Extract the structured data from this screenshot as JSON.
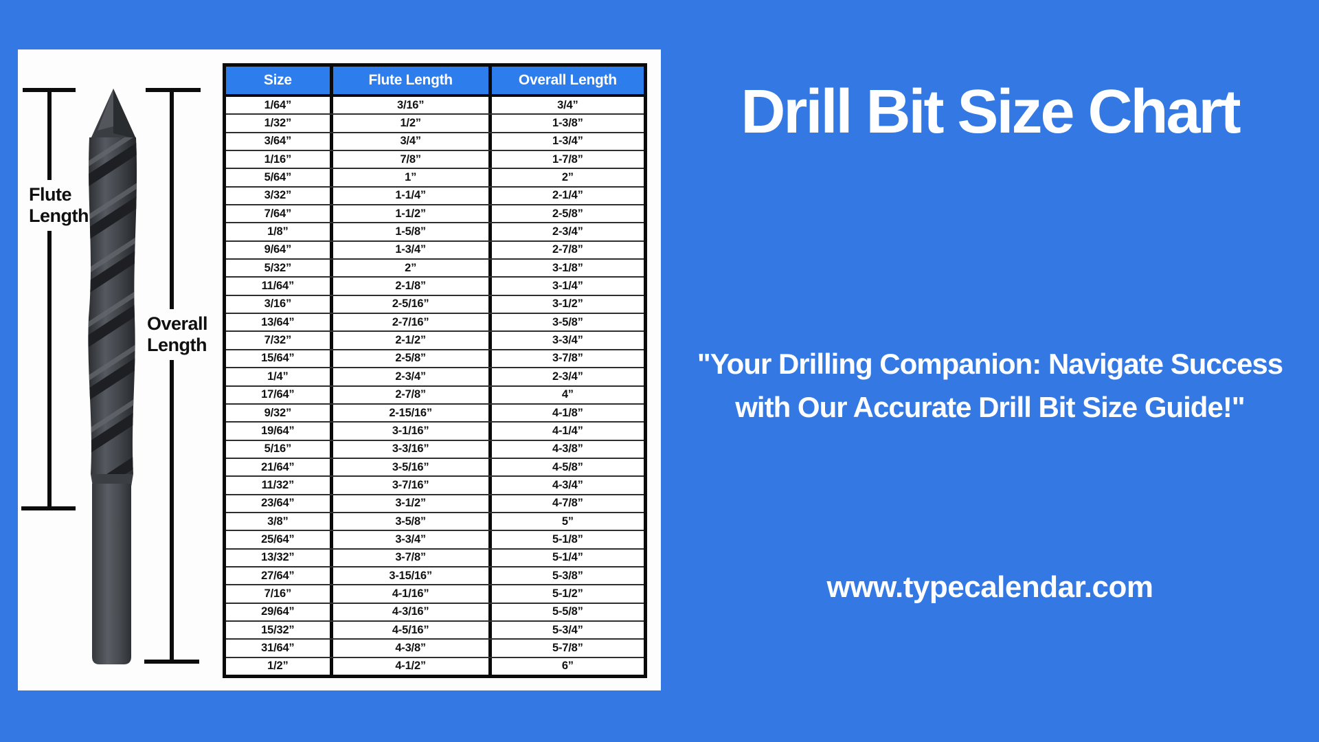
{
  "colors": {
    "bg": "#3478e3",
    "panel": "#fdfdfd",
    "header-blue": "#2e7dec",
    "border-black": "#0a0a0a",
    "cell-text": "#121212",
    "white": "#ffffff"
  },
  "title": "Drill Bit Size Chart",
  "quote": {
    "line1": "\"Your Drilling Companion: Navigate Success",
    "line2": "with Our Accurate Drill Bit Size Guide!\""
  },
  "website": "www.typecalendar.com",
  "diagram": {
    "flute_label_line1": "Flute",
    "flute_label_line2": "Length",
    "overall_label_line1": "Overall",
    "overall_label_line2": "Length"
  },
  "chart_data": {
    "type": "table",
    "title": "Drill Bit Size Chart",
    "columns": [
      "Size",
      "Flute Length",
      "Overall Length"
    ],
    "rows": [
      [
        "1/64”",
        "3/16”",
        "3/4”"
      ],
      [
        "1/32”",
        "1/2”",
        "1-3/8”"
      ],
      [
        "3/64”",
        "3/4”",
        "1-3/4”"
      ],
      [
        "1/16”",
        "7/8”",
        "1-7/8”"
      ],
      [
        "5/64”",
        "1”",
        "2”"
      ],
      [
        "3/32”",
        "1-1/4”",
        "2-1/4”"
      ],
      [
        "7/64”",
        "1-1/2”",
        "2-5/8”"
      ],
      [
        "1/8”",
        "1-5/8”",
        "2-3/4”"
      ],
      [
        "9/64”",
        "1-3/4”",
        "2-7/8”"
      ],
      [
        "5/32”",
        "2”",
        "3-1/8”"
      ],
      [
        "11/64”",
        "2-1/8”",
        "3-1/4”"
      ],
      [
        "3/16”",
        "2-5/16”",
        "3-1/2”"
      ],
      [
        "13/64”",
        "2-7/16”",
        "3-5/8”"
      ],
      [
        "7/32”",
        "2-1/2”",
        "3-3/4”"
      ],
      [
        "15/64”",
        "2-5/8”",
        "3-7/8”"
      ],
      [
        "1/4”",
        "2-3/4”",
        "2-3/4”"
      ],
      [
        "17/64”",
        "2-7/8”",
        "4”"
      ],
      [
        "9/32”",
        "2-15/16”",
        "4-1/8”"
      ],
      [
        "19/64”",
        "3-1/16”",
        "4-1/4”"
      ],
      [
        "5/16”",
        "3-3/16”",
        "4-3/8”"
      ],
      [
        "21/64”",
        "3-5/16”",
        "4-5/8”"
      ],
      [
        "11/32”",
        "3-7/16”",
        "4-3/4”"
      ],
      [
        "23/64”",
        "3-1/2”",
        "4-7/8”"
      ],
      [
        "3/8”",
        "3-5/8”",
        "5”"
      ],
      [
        "25/64”",
        "3-3/4”",
        "5-1/8”"
      ],
      [
        "13/32”",
        "3-7/8”",
        "5-1/4”"
      ],
      [
        "27/64”",
        "3-15/16”",
        "5-3/8”"
      ],
      [
        "7/16”",
        "4-1/16”",
        "5-1/2”"
      ],
      [
        "29/64”",
        "4-3/16”",
        "5-5/8”"
      ],
      [
        "15/32”",
        "4-5/16”",
        "5-3/4”"
      ],
      [
        "31/64”",
        "4-3/8”",
        "5-7/8”"
      ],
      [
        "1/2”",
        "4-1/2”",
        "6”"
      ]
    ]
  }
}
